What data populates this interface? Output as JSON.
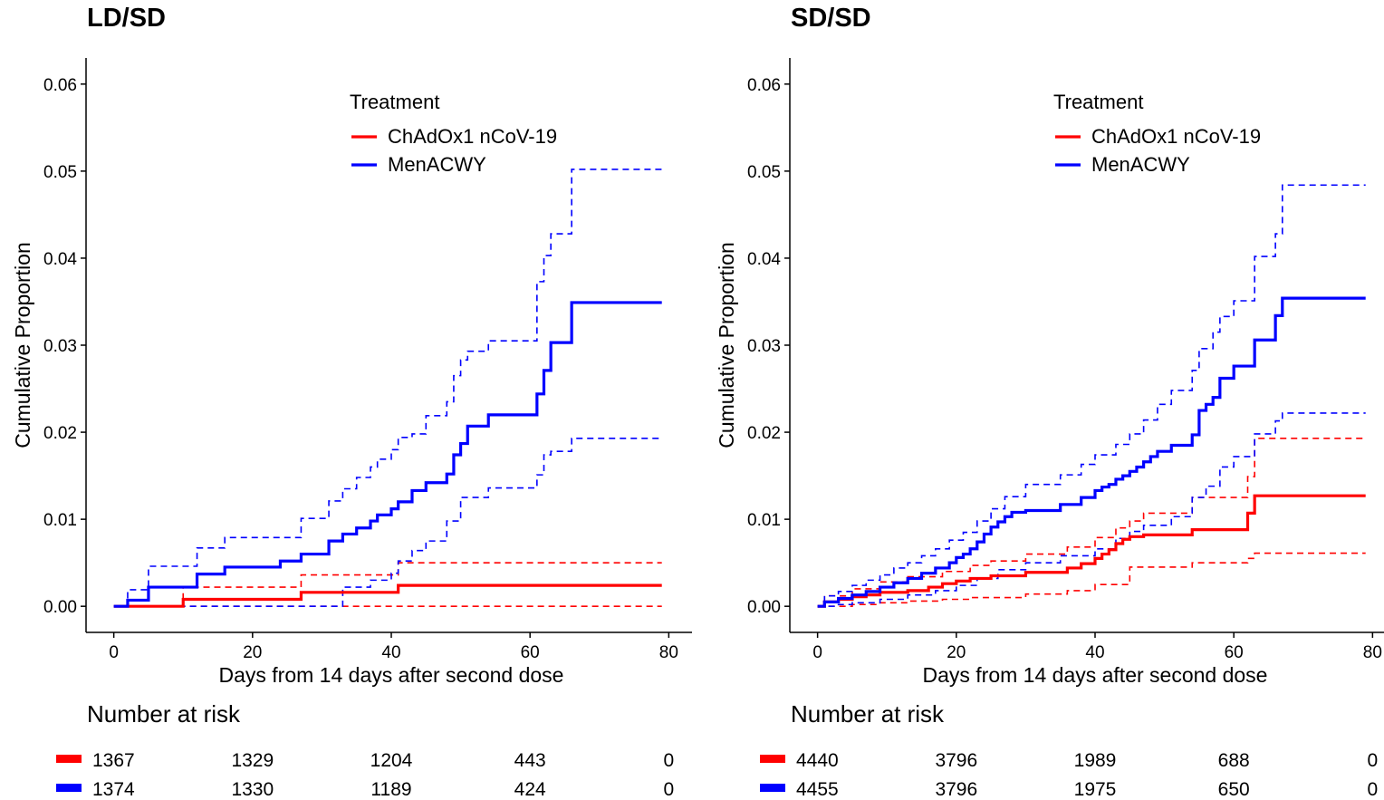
{
  "colors": {
    "red": "#ff0000",
    "blue": "#0000ff"
  },
  "chart_data": [
    {
      "type": "line",
      "title": "LD/SD",
      "xlabel": "Days from 14 days after second dose",
      "ylabel": "Cumulative Proportion",
      "xlim": [
        -4,
        84
      ],
      "ylim": [
        -0.003,
        0.063
      ],
      "x_ticks": [
        0,
        20,
        40,
        60,
        80
      ],
      "y_ticks": [
        0.0,
        0.01,
        0.02,
        0.03,
        0.04,
        0.05,
        0.06
      ],
      "y_tick_labels": [
        "0.00",
        "0.01",
        "0.02",
        "0.03",
        "0.04",
        "0.05",
        "0.06"
      ],
      "grid": false,
      "legend": {
        "title": "Treatment",
        "position": "top-right"
      },
      "series": [
        {
          "name": "ChAdOx1 nCoV-19",
          "color": "#ff0000",
          "style": "step",
          "x": [
            0,
            10,
            27,
            41,
            79
          ],
          "y": [
            0,
            0.0008,
            0.0016,
            0.0024,
            0.0024
          ]
        },
        {
          "name": "MenACWY",
          "color": "#0000ff",
          "style": "step",
          "x": [
            0,
            2,
            5,
            12,
            16,
            24,
            27,
            31,
            33,
            35,
            37,
            38,
            40,
            41,
            43,
            45,
            48,
            49,
            50,
            51,
            54,
            61,
            62,
            63,
            66,
            79
          ],
          "y": [
            0,
            0.0007,
            0.0022,
            0.0037,
            0.0045,
            0.0052,
            0.006,
            0.0075,
            0.0083,
            0.009,
            0.0098,
            0.0105,
            0.0112,
            0.012,
            0.0133,
            0.0142,
            0.0152,
            0.0174,
            0.0187,
            0.0207,
            0.022,
            0.0244,
            0.0271,
            0.0303,
            0.0349,
            0.0349
          ]
        }
      ],
      "ci": [
        {
          "color": "#ff0000",
          "bound": "upper",
          "x": [
            0,
            10,
            27,
            41,
            79
          ],
          "y": [
            0,
            0.0022,
            0.0036,
            0.005,
            0.005
          ]
        },
        {
          "color": "#ff0000",
          "bound": "lower",
          "x": [
            0,
            79
          ],
          "y": [
            0,
            0
          ]
        },
        {
          "color": "#0000ff",
          "bound": "upper",
          "x": [
            0,
            2,
            5,
            12,
            16,
            27,
            31,
            33,
            35,
            37,
            38,
            40,
            41,
            43,
            45,
            48,
            49,
            50,
            51,
            54,
            61,
            62,
            63,
            66,
            79
          ],
          "y": [
            0,
            0.0019,
            0.0046,
            0.0067,
            0.0079,
            0.0101,
            0.0121,
            0.0135,
            0.0148,
            0.016,
            0.0169,
            0.018,
            0.0194,
            0.0198,
            0.0219,
            0.0235,
            0.0265,
            0.0283,
            0.0293,
            0.0305,
            0.0373,
            0.0403,
            0.0428,
            0.0502,
            0.0502
          ]
        },
        {
          "color": "#0000ff",
          "bound": "lower",
          "x": [
            0,
            33,
            37,
            40,
            41,
            43,
            45,
            48,
            50,
            54,
            61,
            62,
            63,
            66,
            79
          ],
          "y": [
            0,
            0.0022,
            0.003,
            0.0038,
            0.0052,
            0.0064,
            0.0075,
            0.0098,
            0.0125,
            0.0136,
            0.0151,
            0.0174,
            0.0178,
            0.0193,
            0.0193
          ]
        }
      ],
      "risk_table": {
        "title": "Number at risk",
        "times": [
          0,
          20,
          40,
          60,
          80
        ],
        "rows": [
          {
            "color": "#ff0000",
            "values": [
              "1367",
              "1329",
              "1204",
              "443",
              "0"
            ]
          },
          {
            "color": "#0000ff",
            "values": [
              "1374",
              "1330",
              "1189",
              "424",
              "0"
            ]
          }
        ]
      }
    },
    {
      "type": "line",
      "title": "SD/SD",
      "xlabel": "Days from 14 days after second dose",
      "ylabel": "Cumulative Proportion",
      "xlim": [
        -4,
        84
      ],
      "ylim": [
        -0.003,
        0.063
      ],
      "x_ticks": [
        0,
        20,
        40,
        60,
        80
      ],
      "y_ticks": [
        0.0,
        0.01,
        0.02,
        0.03,
        0.04,
        0.05,
        0.06
      ],
      "y_tick_labels": [
        "0.00",
        "0.01",
        "0.02",
        "0.03",
        "0.04",
        "0.05",
        "0.06"
      ],
      "grid": false,
      "legend": {
        "title": "Treatment",
        "position": "top-right"
      },
      "series": [
        {
          "name": "ChAdOx1 nCoV-19",
          "color": "#ff0000",
          "style": "step",
          "x": [
            0,
            1,
            3,
            5,
            7,
            9,
            13,
            16,
            18,
            20,
            22,
            25,
            30,
            36,
            38,
            40,
            41,
            42,
            43,
            44,
            45,
            47,
            54,
            62,
            63,
            79
          ],
          "y": [
            0,
            0.0005,
            0.0008,
            0.0011,
            0.0013,
            0.0016,
            0.0018,
            0.0022,
            0.0026,
            0.0029,
            0.0032,
            0.0035,
            0.0039,
            0.0044,
            0.0049,
            0.0055,
            0.006,
            0.0065,
            0.0072,
            0.0077,
            0.008,
            0.0082,
            0.0088,
            0.0107,
            0.0127,
            0.0127
          ]
        },
        {
          "name": "MenACWY",
          "color": "#0000ff",
          "style": "step",
          "x": [
            0,
            1,
            3,
            5,
            7,
            9,
            11,
            13,
            15,
            17,
            19,
            20,
            21,
            22,
            23,
            24,
            25,
            26,
            27,
            28,
            30,
            35,
            38,
            40,
            41,
            42,
            43,
            44,
            45,
            46,
            47,
            48,
            49,
            51,
            54,
            55,
            56,
            57,
            58,
            60,
            63,
            66,
            67,
            79
          ],
          "y": [
            0,
            0.0005,
            0.0009,
            0.0013,
            0.0017,
            0.0022,
            0.0027,
            0.0032,
            0.0038,
            0.0044,
            0.005,
            0.0056,
            0.006,
            0.0066,
            0.0074,
            0.0083,
            0.0091,
            0.0097,
            0.0103,
            0.0108,
            0.011,
            0.0117,
            0.0125,
            0.0133,
            0.0137,
            0.014,
            0.0146,
            0.015,
            0.0155,
            0.016,
            0.0166,
            0.0172,
            0.0178,
            0.0185,
            0.0197,
            0.0225,
            0.0232,
            0.024,
            0.0262,
            0.0276,
            0.0306,
            0.0334,
            0.0354,
            0.0354
          ]
        }
      ],
      "ci": [
        {
          "color": "#ff0000",
          "bound": "upper",
          "x": [
            0,
            1,
            5,
            9,
            13,
            18,
            22,
            25,
            30,
            36,
            40,
            43,
            45,
            47,
            54,
            62,
            63,
            79
          ],
          "y": [
            0,
            0.0012,
            0.002,
            0.0028,
            0.0034,
            0.004,
            0.0047,
            0.0052,
            0.006,
            0.0068,
            0.0079,
            0.009,
            0.0098,
            0.0107,
            0.0125,
            0.0149,
            0.0193,
            0.0193
          ]
        },
        {
          "color": "#ff0000",
          "bound": "lower",
          "x": [
            0,
            5,
            9,
            13,
            18,
            22,
            30,
            36,
            40,
            45,
            54,
            62,
            63,
            79
          ],
          "y": [
            0,
            0.0002,
            0.0004,
            0.0006,
            0.0008,
            0.001,
            0.0014,
            0.0018,
            0.0025,
            0.0045,
            0.005,
            0.0055,
            0.0061,
            0.0061
          ]
        },
        {
          "color": "#0000ff",
          "bound": "upper",
          "x": [
            0,
            1,
            3,
            5,
            7,
            9,
            11,
            13,
            15,
            17,
            19,
            21,
            23,
            25,
            27,
            30,
            35,
            38,
            40,
            43,
            45,
            47,
            49,
            51,
            54,
            55,
            57,
            58,
            60,
            63,
            66,
            67,
            79
          ],
          "y": [
            0,
            0.0012,
            0.0017,
            0.0024,
            0.003,
            0.0036,
            0.0044,
            0.005,
            0.0058,
            0.0066,
            0.0076,
            0.0085,
            0.0098,
            0.0112,
            0.0126,
            0.014,
            0.0151,
            0.0163,
            0.0174,
            0.0186,
            0.0198,
            0.0214,
            0.0232,
            0.0248,
            0.0271,
            0.0296,
            0.0315,
            0.0333,
            0.0351,
            0.0402,
            0.0428,
            0.0484,
            0.0484
          ]
        },
        {
          "color": "#0000ff",
          "bound": "lower",
          "x": [
            0,
            3,
            5,
            9,
            13,
            17,
            20,
            23,
            26,
            30,
            35,
            40,
            43,
            45,
            47,
            51,
            54,
            56,
            58,
            60,
            63,
            66,
            67,
            79
          ],
          "y": [
            0,
            0.0002,
            0.0004,
            0.0008,
            0.0013,
            0.0018,
            0.0024,
            0.0032,
            0.0042,
            0.005,
            0.0058,
            0.0066,
            0.0078,
            0.0086,
            0.0093,
            0.0103,
            0.0125,
            0.0138,
            0.016,
            0.0172,
            0.0198,
            0.0213,
            0.0222,
            0.0222
          ]
        }
      ],
      "risk_table": {
        "title": "Number at risk",
        "times": [
          0,
          20,
          40,
          60,
          80
        ],
        "rows": [
          {
            "color": "#ff0000",
            "values": [
              "4440",
              "3796",
              "1989",
              "688",
              "0"
            ]
          },
          {
            "color": "#0000ff",
            "values": [
              "4455",
              "3796",
              "1975",
              "650",
              "0"
            ]
          }
        ]
      }
    }
  ]
}
